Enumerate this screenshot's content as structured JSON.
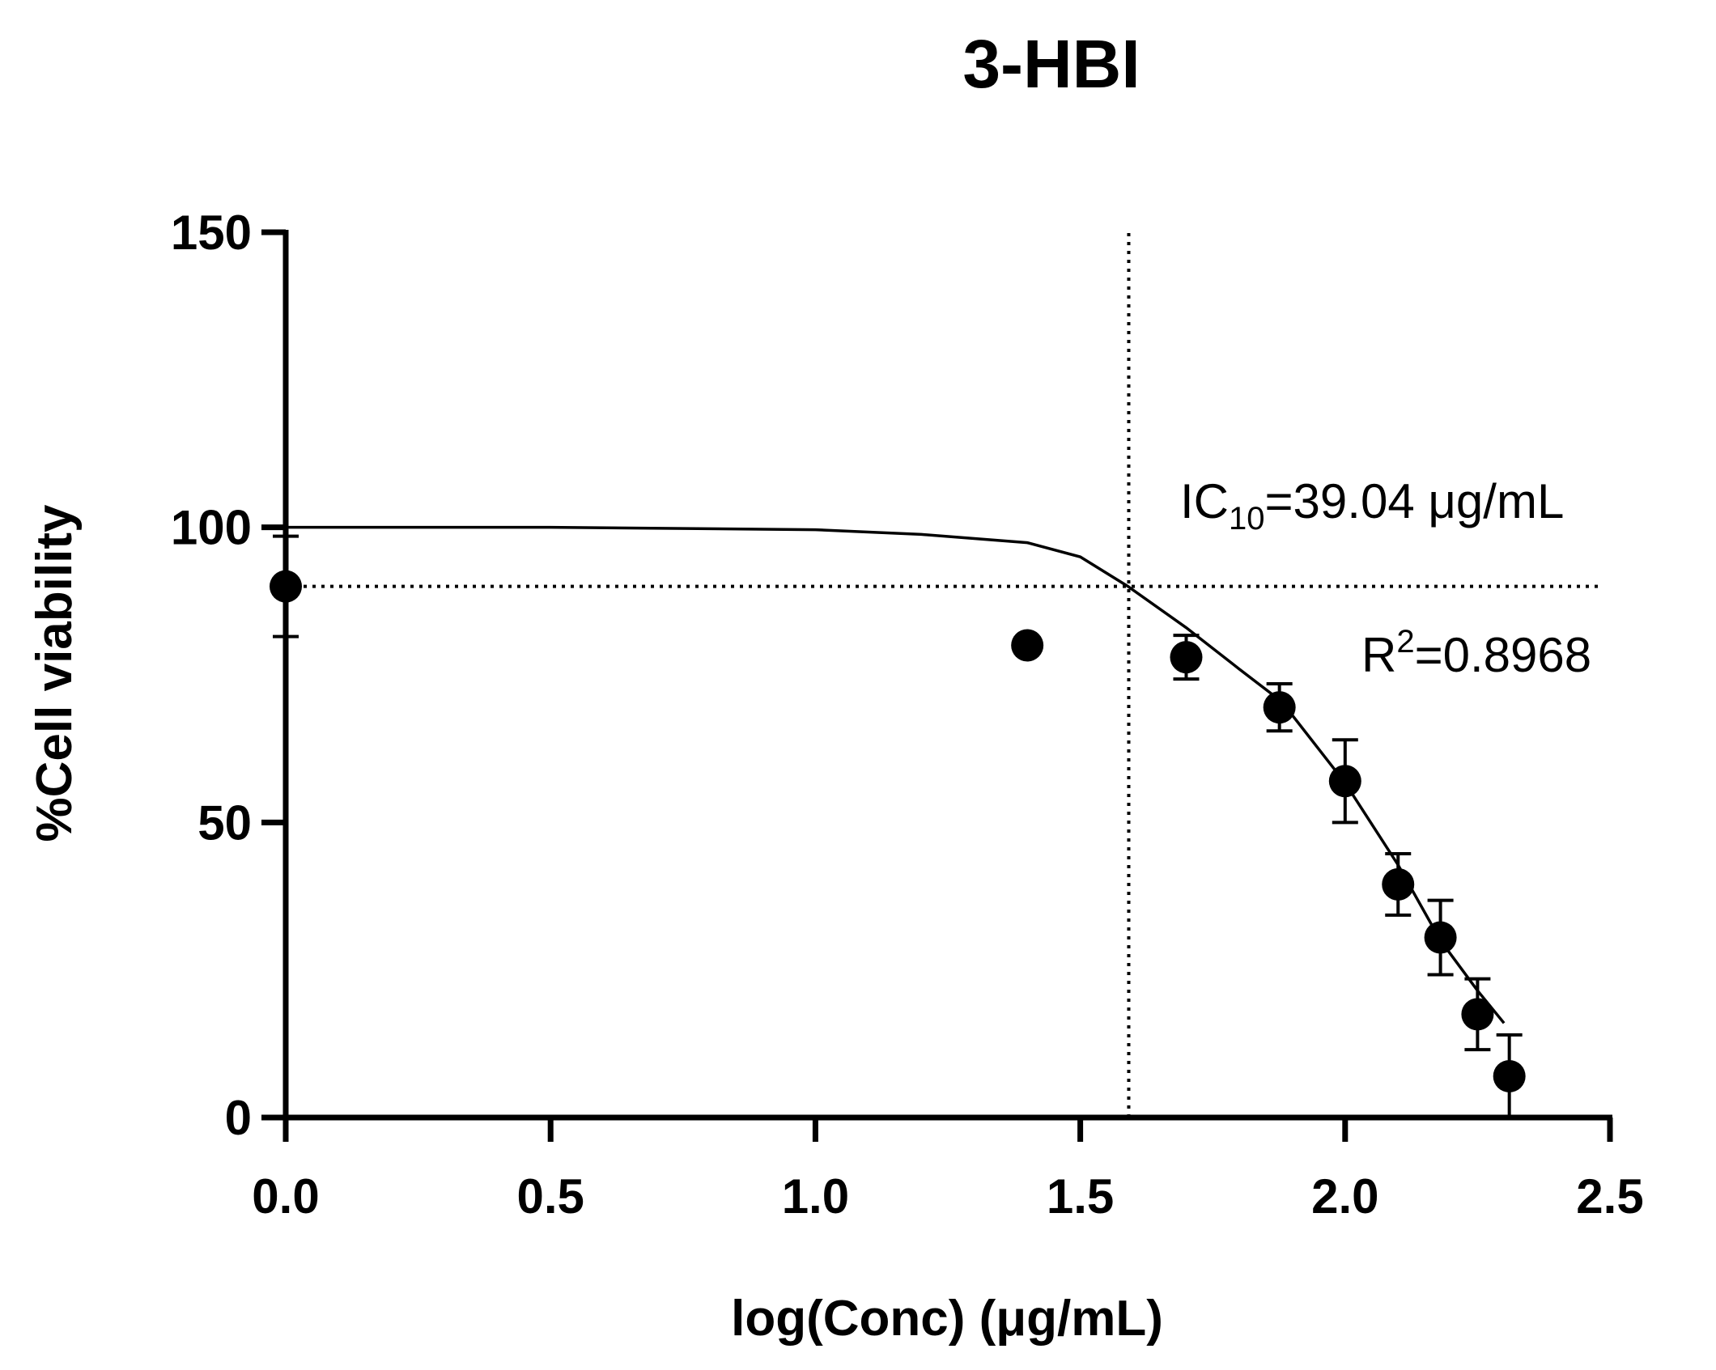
{
  "chart_data": {
    "type": "scatter",
    "title": "3-HBI",
    "x_label": "log(Conc) (μg/mL)",
    "y_label": "%Cell viability",
    "xlim": [
      0,
      2.5
    ],
    "ylim": [
      0,
      150
    ],
    "xticks": [
      {
        "value": 0,
        "label": "0.0"
      },
      0.5,
      {
        "value": 1,
        "label": "1.0"
      },
      1.5,
      {
        "value": 2,
        "label": "2.0"
      },
      2.5
    ],
    "yticks": [
      0,
      50,
      100,
      150
    ],
    "series": [
      {
        "name": "data",
        "color": "#000000",
        "x": [
          0,
          1.4,
          1.7,
          1.876,
          2.0,
          2.1,
          2.18,
          2.25,
          2.31
        ],
        "values": [
          90,
          80,
          78,
          69.5,
          57,
          39.5,
          30.5,
          17.5,
          7
        ],
        "errors": [
          8.5,
          0,
          3.7,
          4,
          7,
          5.2,
          6.3,
          6,
          7
        ]
      },
      {
        "name": "fit",
        "color": "#000000",
        "x": [
          0,
          0.5,
          1.0,
          1.2,
          1.4,
          1.5,
          1.59,
          1.7,
          1.8,
          1.88,
          2.0,
          2.1,
          2.18,
          2.25,
          2.3
        ],
        "values": [
          100,
          100,
          99.6,
          98.8,
          97.4,
          95,
          90,
          83,
          76,
          70.5,
          56.7,
          42.8,
          30,
          21.5,
          16
        ]
      }
    ],
    "reference_lines": {
      "x": 1.5915,
      "y": 90
    },
    "annotations": [
      {
        "base": "IC",
        "sub": "10",
        "rest": "=39.04 μg/mL"
      },
      {
        "base": "R",
        "sup": "2",
        "rest": "=0.8968"
      }
    ]
  }
}
